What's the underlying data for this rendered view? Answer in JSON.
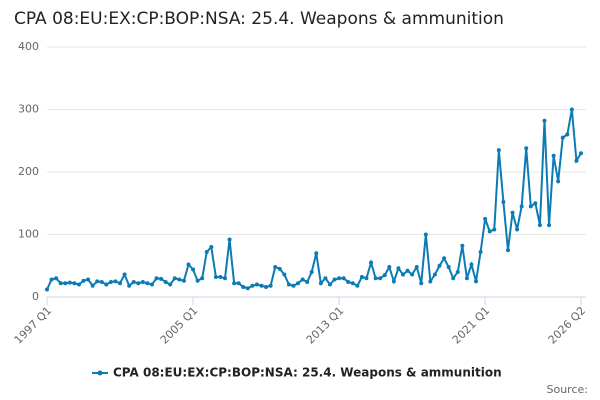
{
  "chart_data": {
    "type": "line",
    "title": "CPA 08:EU:EX:CP:BOP:NSA: 25.4. Weapons & ammunition",
    "source": "Source:",
    "categories": [
      "1997 Q1",
      null,
      null,
      null,
      null,
      null,
      null,
      null,
      null,
      null,
      null,
      null,
      null,
      null,
      null,
      null,
      null,
      null,
      null,
      null,
      null,
      null,
      null,
      null,
      null,
      null,
      null,
      null,
      null,
      null,
      null,
      null,
      "2005 Q1",
      null,
      null,
      null,
      null,
      null,
      null,
      null,
      null,
      null,
      null,
      null,
      null,
      null,
      null,
      null,
      null,
      null,
      null,
      null,
      null,
      null,
      null,
      null,
      null,
      null,
      null,
      null,
      null,
      null,
      null,
      null,
      "2013 Q1",
      null,
      null,
      null,
      null,
      null,
      null,
      null,
      null,
      null,
      null,
      null,
      null,
      null,
      null,
      null,
      null,
      null,
      null,
      null,
      null,
      null,
      null,
      null,
      null,
      null,
      null,
      null,
      null,
      null,
      null,
      null,
      "2021 Q1",
      null,
      null,
      null,
      null,
      null,
      null,
      null,
      null,
      null,
      null,
      null,
      null,
      null,
      null,
      null,
      null,
      null,
      null,
      null,
      null,
      "2026 Q2"
    ],
    "series": [
      {
        "name": "CPA 08:EU:EX:CP:BOP:NSA: 25.4. Weapons & ammunition",
        "color": "#0c7bb5",
        "values": [
          12,
          28,
          30,
          22,
          22,
          23,
          22,
          20,
          26,
          28,
          18,
          25,
          24,
          20,
          24,
          25,
          22,
          36,
          18,
          24,
          22,
          24,
          22,
          20,
          30,
          29,
          24,
          20,
          30,
          28,
          26,
          52,
          44,
          26,
          30,
          72,
          80,
          32,
          32,
          30,
          92,
          22,
          22,
          16,
          14,
          18,
          20,
          18,
          16,
          18,
          48,
          45,
          36,
          20,
          18,
          22,
          28,
          24,
          40,
          70,
          22,
          30,
          20,
          28,
          30,
          30,
          24,
          22,
          18,
          32,
          30,
          55,
          30,
          30,
          35,
          48,
          25,
          46,
          36,
          42,
          36,
          48,
          22,
          100,
          25,
          36,
          50,
          62,
          48,
          30,
          40,
          82,
          30,
          52,
          25,
          72,
          125,
          105,
          108,
          235,
          152,
          75,
          135,
          108,
          145,
          238,
          145,
          150,
          115,
          282,
          115,
          226,
          185,
          255,
          260,
          300,
          218,
          230
        ]
      }
    ],
    "ylim": [
      0,
      400
    ],
    "yticks": [
      0,
      100,
      200,
      300,
      400
    ],
    "grid": true
  }
}
